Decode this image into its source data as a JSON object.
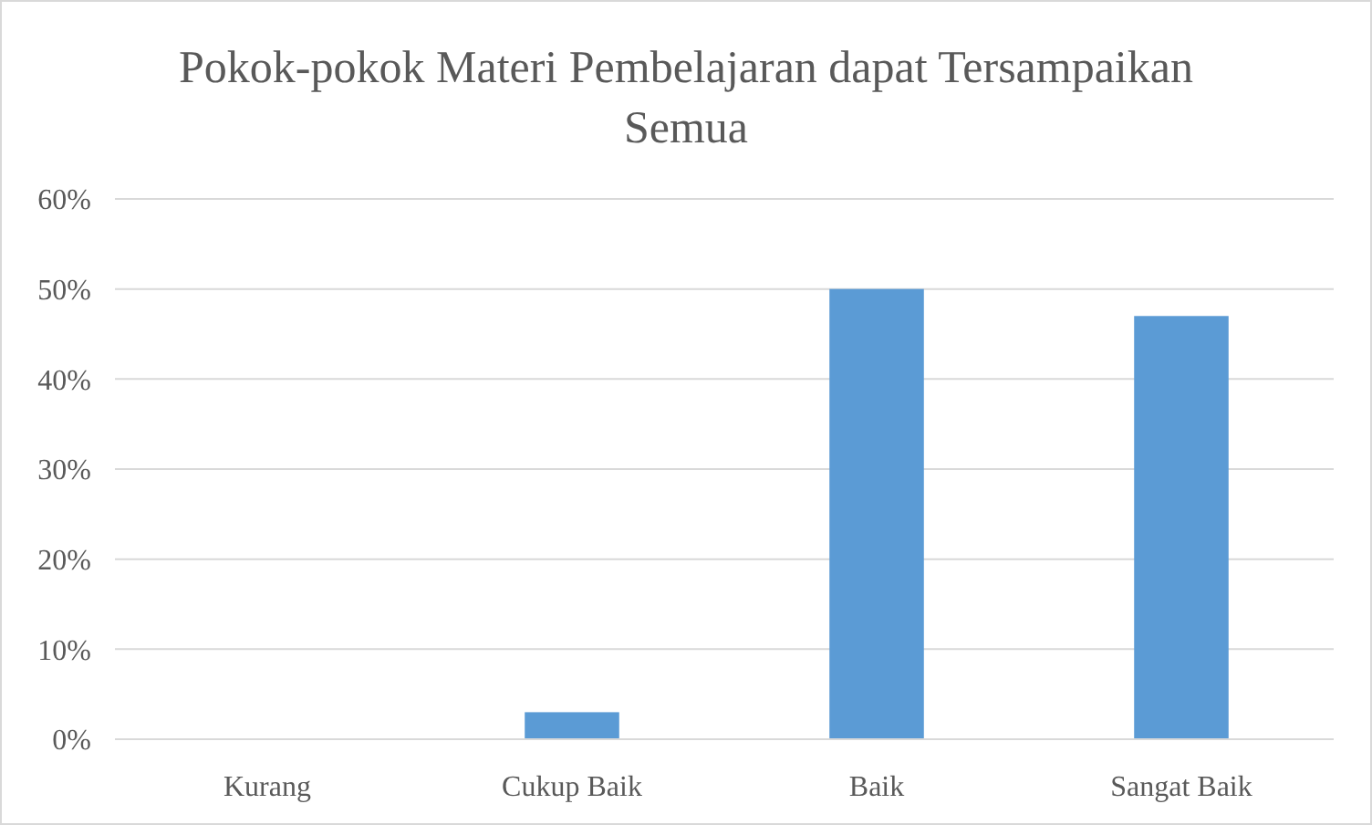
{
  "chart_data": {
    "type": "bar",
    "title": "Pokok-pokok Materi Pembelajaran dapat Tersampaikan Semua",
    "categories": [
      "Kurang",
      "Cukup Baik",
      "Baik",
      "Sangat Baik"
    ],
    "values": [
      0,
      3,
      50,
      47
    ],
    "color": "#5b9bd5",
    "ylim": [
      0,
      60
    ],
    "yticks": [
      {
        "value": 0,
        "label": "0%"
      },
      {
        "value": 10,
        "label": "10%"
      },
      {
        "value": 20,
        "label": "20%"
      },
      {
        "value": 30,
        "label": "30%"
      },
      {
        "value": 40,
        "label": "40%"
      },
      {
        "value": 50,
        "label": "50%"
      },
      {
        "value": 60,
        "label": "60%"
      }
    ],
    "grid": true
  }
}
